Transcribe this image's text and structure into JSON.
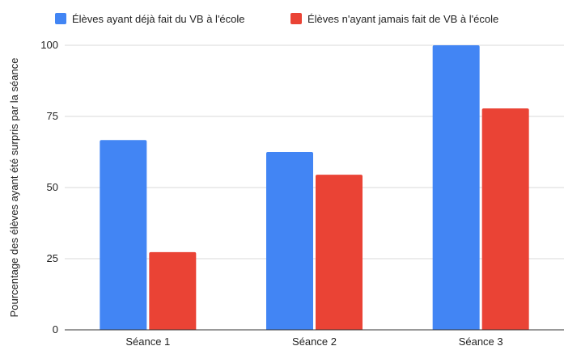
{
  "chart_data": {
    "type": "bar",
    "categories": [
      "Séance 1",
      "Séance 2",
      "Séance 3"
    ],
    "series": [
      {
        "name": "Élèves ayant déjà fait du VB à l'école",
        "color": "#4285f4",
        "values": [
          66.7,
          62.5,
          100
        ]
      },
      {
        "name": "Élèves n'ayant jamais fait de VB à l'école",
        "color": "#ea4335",
        "values": [
          27.3,
          54.5,
          77.8
        ]
      }
    ],
    "ylabel": "Pourcentage des élèves ayant été surpris par la séance",
    "xlabel": "",
    "ylim": [
      0,
      100
    ],
    "yticks": [
      "0",
      "25",
      "50",
      "75",
      "100"
    ],
    "grid": true,
    "legend": "top"
  }
}
